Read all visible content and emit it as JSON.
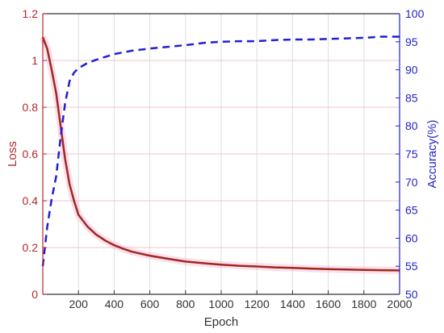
{
  "chart_data": {
    "type": "line",
    "title": "",
    "xlabel": "Epoch",
    "ylabel": "Loss",
    "y2label": "Accuracy(%)",
    "xlim": [
      0,
      2000
    ],
    "ylim": [
      0,
      1.2
    ],
    "y2lim": [
      50,
      100
    ],
    "grid": true,
    "legend": "none",
    "x_ticks": [
      "200",
      "400",
      "600",
      "800",
      "1000",
      "1200",
      "1400",
      "1600",
      "1800",
      "2000"
    ],
    "y_ticks": [
      "0",
      "0.2",
      "0.4",
      "0.6",
      "0.8",
      "1",
      "1.2"
    ],
    "y2_ticks": [
      "50",
      "55",
      "60",
      "65",
      "70",
      "75",
      "80",
      "85",
      "90",
      "95",
      "100"
    ],
    "colors": {
      "loss": "#a0271f",
      "accuracy": "#1f1fd6",
      "left_axis": "#b3282d",
      "right_axis": "#1f1fc8",
      "grid": "#f2c4cc"
    },
    "series": [
      {
        "axis": "left",
        "style": "solid",
        "x": [
          0,
          25,
          50,
          75,
          100,
          125,
          150,
          175,
          200,
          250,
          300,
          350,
          400,
          450,
          500,
          600,
          700,
          800,
          900,
          1000,
          1100,
          1200,
          1300,
          1400,
          1500,
          1600,
          1700,
          1800,
          1900,
          2000
        ],
        "values": [
          1.1,
          1.05,
          0.96,
          0.86,
          0.72,
          0.58,
          0.47,
          0.4,
          0.34,
          0.29,
          0.255,
          0.23,
          0.21,
          0.195,
          0.182,
          0.165,
          0.152,
          0.14,
          0.133,
          0.127,
          0.122,
          0.119,
          0.115,
          0.113,
          0.11,
          0.108,
          0.106,
          0.104,
          0.103,
          0.102
        ]
      },
      {
        "axis": "right",
        "style": "dashed",
        "x": [
          0,
          25,
          50,
          75,
          100,
          125,
          150,
          175,
          200,
          250,
          300,
          400,
          500,
          600,
          700,
          800,
          900,
          1000,
          1100,
          1200,
          1300,
          1400,
          1500,
          1600,
          1700,
          1800,
          1900,
          2000
        ],
        "values": [
          55,
          62,
          67,
          71,
          78,
          84,
          88,
          89.5,
          90.3,
          91.2,
          91.8,
          92.8,
          93.4,
          93.8,
          94.1,
          94.4,
          94.8,
          95.0,
          95.1,
          95.1,
          95.3,
          95.4,
          95.4,
          95.5,
          95.6,
          95.7,
          95.9,
          95.9
        ]
      }
    ]
  }
}
